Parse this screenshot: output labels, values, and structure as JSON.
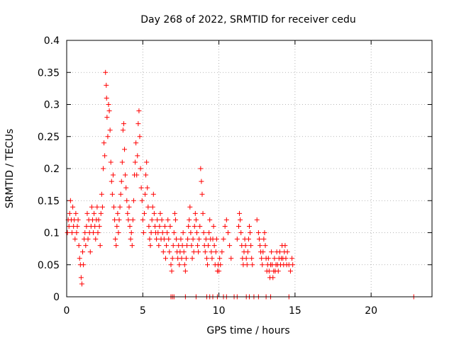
{
  "chart_data": {
    "type": "scatter",
    "title": "Day 268 of 2022, SRMTID for receiver cedu",
    "xlabel": "GPS time / hours",
    "ylabel": "SRMTID / TECUs",
    "xlim": [
      0,
      24
    ],
    "ylim": [
      0,
      0.4
    ],
    "xticks": [
      0,
      5,
      10,
      15,
      20
    ],
    "yticks": [
      0,
      0.05,
      0.1,
      0.15,
      0.2,
      0.25,
      0.3,
      0.35,
      0.4
    ],
    "ytick_labels": [
      "0",
      "0.05",
      "0.1",
      "0.15",
      "0.2",
      "0.25",
      "0.3",
      "0.35",
      "0.4"
    ],
    "grid": true,
    "marker": "+",
    "series": [
      {
        "name": "SRMTID",
        "color": "#ff0000",
        "points": [
          [
            0.05,
            0.1
          ],
          [
            0.1,
            0.12
          ],
          [
            0.15,
            0.11
          ],
          [
            0.2,
            0.13
          ],
          [
            0.25,
            0.15
          ],
          [
            0.3,
            0.12
          ],
          [
            0.35,
            0.1
          ],
          [
            0.4,
            0.14
          ],
          [
            0.45,
            0.11
          ],
          [
            0.5,
            0.12
          ],
          [
            0.55,
            0.09
          ],
          [
            0.6,
            0.13
          ],
          [
            0.65,
            0.1
          ],
          [
            0.7,
            0.11
          ],
          [
            0.75,
            0.12
          ],
          [
            0.8,
            0.08
          ],
          [
            0.85,
            0.06
          ],
          [
            0.9,
            0.05
          ],
          [
            0.95,
            0.03
          ],
          [
            1.0,
            0.02
          ],
          [
            1.05,
            0.07
          ],
          [
            1.1,
            0.05
          ],
          [
            1.15,
            0.09
          ],
          [
            1.2,
            0.1
          ],
          [
            1.25,
            0.08
          ],
          [
            1.3,
            0.11
          ],
          [
            1.35,
            0.13
          ],
          [
            1.4,
            0.09
          ],
          [
            1.45,
            0.12
          ],
          [
            1.5,
            0.1
          ],
          [
            1.55,
            0.07
          ],
          [
            1.6,
            0.11
          ],
          [
            1.65,
            0.14
          ],
          [
            1.7,
            0.12
          ],
          [
            1.75,
            0.1
          ],
          [
            1.8,
            0.13
          ],
          [
            1.85,
            0.11
          ],
          [
            1.9,
            0.09
          ],
          [
            1.95,
            0.12
          ],
          [
            2.0,
            0.14
          ],
          [
            2.05,
            0.1
          ],
          [
            2.1,
            0.12
          ],
          [
            2.15,
            0.11
          ],
          [
            2.2,
            0.08
          ],
          [
            2.25,
            0.13
          ],
          [
            2.3,
            0.16
          ],
          [
            2.35,
            0.14
          ],
          [
            2.4,
            0.2
          ],
          [
            2.45,
            0.24
          ],
          [
            2.5,
            0.22
          ],
          [
            2.55,
            0.35
          ],
          [
            2.6,
            0.33
          ],
          [
            2.62,
            0.31
          ],
          [
            2.65,
            0.28
          ],
          [
            2.7,
            0.25
          ],
          [
            2.75,
            0.3
          ],
          [
            2.8,
            0.29
          ],
          [
            2.85,
            0.26
          ],
          [
            2.9,
            0.21
          ],
          [
            2.95,
            0.18
          ],
          [
            3.0,
            0.16
          ],
          [
            3.05,
            0.19
          ],
          [
            3.1,
            0.14
          ],
          [
            3.15,
            0.12
          ],
          [
            3.2,
            0.09
          ],
          [
            3.25,
            0.08
          ],
          [
            3.3,
            0.11
          ],
          [
            3.35,
            0.13
          ],
          [
            3.4,
            0.1
          ],
          [
            3.45,
            0.12
          ],
          [
            3.5,
            0.14
          ],
          [
            3.55,
            0.16
          ],
          [
            3.6,
            0.18
          ],
          [
            3.65,
            0.21
          ],
          [
            3.7,
            0.26
          ],
          [
            3.75,
            0.27
          ],
          [
            3.8,
            0.23
          ],
          [
            3.85,
            0.19
          ],
          [
            3.9,
            0.17
          ],
          [
            3.95,
            0.15
          ],
          [
            4.0,
            0.13
          ],
          [
            4.05,
            0.12
          ],
          [
            4.1,
            0.14
          ],
          [
            4.15,
            0.11
          ],
          [
            4.2,
            0.09
          ],
          [
            4.25,
            0.1
          ],
          [
            4.3,
            0.08
          ],
          [
            4.35,
            0.12
          ],
          [
            4.4,
            0.15
          ],
          [
            4.45,
            0.19
          ],
          [
            4.5,
            0.21
          ],
          [
            4.55,
            0.24
          ],
          [
            4.6,
            0.19
          ],
          [
            4.65,
            0.22
          ],
          [
            4.7,
            0.27
          ],
          [
            4.75,
            0.29
          ],
          [
            4.8,
            0.25
          ],
          [
            4.85,
            0.2
          ],
          [
            4.9,
            0.17
          ],
          [
            4.95,
            0.15
          ],
          [
            5.0,
            0.12
          ],
          [
            5.05,
            0.1
          ],
          [
            5.1,
            0.13
          ],
          [
            5.15,
            0.16
          ],
          [
            5.2,
            0.19
          ],
          [
            5.25,
            0.21
          ],
          [
            5.3,
            0.17
          ],
          [
            5.35,
            0.14
          ],
          [
            5.4,
            0.11
          ],
          [
            5.45,
            0.09
          ],
          [
            5.5,
            0.08
          ],
          [
            5.55,
            0.1
          ],
          [
            5.6,
            0.12
          ],
          [
            5.65,
            0.14
          ],
          [
            5.7,
            0.16
          ],
          [
            5.75,
            0.13
          ],
          [
            5.8,
            0.11
          ],
          [
            5.85,
            0.1
          ],
          [
            5.9,
            0.09
          ],
          [
            5.95,
            0.12
          ],
          [
            6.0,
            0.1
          ],
          [
            6.05,
            0.08
          ],
          [
            6.1,
            0.11
          ],
          [
            6.15,
            0.13
          ],
          [
            6.2,
            0.09
          ],
          [
            6.25,
            0.12
          ],
          [
            6.3,
            0.1
          ],
          [
            6.35,
            0.07
          ],
          [
            6.4,
            0.09
          ],
          [
            6.45,
            0.11
          ],
          [
            6.5,
            0.06
          ],
          [
            6.55,
            0.08
          ],
          [
            6.6,
            0.1
          ],
          [
            6.65,
            0.12
          ],
          [
            6.7,
            0.09
          ],
          [
            6.75,
            0.07
          ],
          [
            6.8,
            0.11
          ],
          [
            6.85,
            0.05
          ],
          [
            6.9,
            0.04
          ],
          [
            6.95,
            0.06
          ],
          [
            7.0,
            0.08
          ],
          [
            7.05,
            0.1
          ],
          [
            7.1,
            0.13
          ],
          [
            7.15,
            0.12
          ],
          [
            7.2,
            0.09
          ],
          [
            7.25,
            0.07
          ],
          [
            7.3,
            0.06
          ],
          [
            7.35,
            0.08
          ],
          [
            7.4,
            0.05
          ],
          [
            7.45,
            0.07
          ],
          [
            7.5,
            0.09
          ],
          [
            7.55,
            0.06
          ],
          [
            7.6,
            0.08
          ],
          [
            7.65,
            0.1
          ],
          [
            7.7,
            0.07
          ],
          [
            7.75,
            0.05
          ],
          [
            7.8,
            0.04
          ],
          [
            7.85,
            0.06
          ],
          [
            7.9,
            0.08
          ],
          [
            7.95,
            0.09
          ],
          [
            8.0,
            0.11
          ],
          [
            8.05,
            0.12
          ],
          [
            8.1,
            0.14
          ],
          [
            8.15,
            0.1
          ],
          [
            8.2,
            0.08
          ],
          [
            8.25,
            0.06
          ],
          [
            8.3,
            0.09
          ],
          [
            8.35,
            0.07
          ],
          [
            8.4,
            0.11
          ],
          [
            8.45,
            0.13
          ],
          [
            8.5,
            0.12
          ],
          [
            8.55,
            0.1
          ],
          [
            8.6,
            0.08
          ],
          [
            8.65,
            0.07
          ],
          [
            8.7,
            0.09
          ],
          [
            8.75,
            0.11
          ],
          [
            8.8,
            0.2
          ],
          [
            8.85,
            0.18
          ],
          [
            8.9,
            0.16
          ],
          [
            8.95,
            0.13
          ],
          [
            9.0,
            0.1
          ],
          [
            9.05,
            0.08
          ],
          [
            9.1,
            0.07
          ],
          [
            9.15,
            0.09
          ],
          [
            9.2,
            0.06
          ],
          [
            9.25,
            0.05
          ],
          [
            9.3,
            0.08
          ],
          [
            9.35,
            0.1
          ],
          [
            9.4,
            0.12
          ],
          [
            9.45,
            0.09
          ],
          [
            9.5,
            0.07
          ],
          [
            9.55,
            0.06
          ],
          [
            9.6,
            0.09
          ],
          [
            9.65,
            0.11
          ],
          [
            9.7,
            0.08
          ],
          [
            9.75,
            0.05
          ],
          [
            9.8,
            0.07
          ],
          [
            9.85,
            0.09
          ],
          [
            9.9,
            0.04
          ],
          [
            9.95,
            0.05
          ],
          [
            10.0,
            0.04
          ],
          [
            10.05,
            0.06
          ],
          [
            10.1,
            0.05
          ],
          [
            10.2,
            0.07
          ],
          [
            10.3,
            0.09
          ],
          [
            10.4,
            0.11
          ],
          [
            10.5,
            0.12
          ],
          [
            10.6,
            0.1
          ],
          [
            10.7,
            0.08
          ],
          [
            10.8,
            0.06
          ],
          [
            11.2,
            0.09
          ],
          [
            11.3,
            0.11
          ],
          [
            11.35,
            0.13
          ],
          [
            11.4,
            0.12
          ],
          [
            11.45,
            0.1
          ],
          [
            11.5,
            0.08
          ],
          [
            11.55,
            0.06
          ],
          [
            11.6,
            0.05
          ],
          [
            11.65,
            0.07
          ],
          [
            11.7,
            0.09
          ],
          [
            11.75,
            0.08
          ],
          [
            11.8,
            0.06
          ],
          [
            11.85,
            0.05
          ],
          [
            11.9,
            0.07
          ],
          [
            11.95,
            0.09
          ],
          [
            12.0,
            0.11
          ],
          [
            12.05,
            0.1
          ],
          [
            12.1,
            0.08
          ],
          [
            12.15,
            0.06
          ],
          [
            12.2,
            0.05
          ],
          [
            12.5,
            0.12
          ],
          [
            12.6,
            0.1
          ],
          [
            12.65,
            0.09
          ],
          [
            12.7,
            0.08
          ],
          [
            12.75,
            0.07
          ],
          [
            12.8,
            0.06
          ],
          [
            12.85,
            0.05
          ],
          [
            12.9,
            0.07
          ],
          [
            12.95,
            0.09
          ],
          [
            13.0,
            0.1
          ],
          [
            13.05,
            0.08
          ],
          [
            13.1,
            0.06
          ],
          [
            13.15,
            0.04
          ],
          [
            13.2,
            0.05
          ],
          [
            13.25,
            0.06
          ],
          [
            13.3,
            0.04
          ],
          [
            13.35,
            0.03
          ],
          [
            13.4,
            0.05
          ],
          [
            13.45,
            0.07
          ],
          [
            13.5,
            0.05
          ],
          [
            13.55,
            0.03
          ],
          [
            13.6,
            0.04
          ],
          [
            13.65,
            0.06
          ],
          [
            13.7,
            0.04
          ],
          [
            13.75,
            0.05
          ],
          [
            13.8,
            0.07
          ],
          [
            13.85,
            0.05
          ],
          [
            13.9,
            0.04
          ],
          [
            13.95,
            0.06
          ],
          [
            14.0,
            0.07
          ],
          [
            14.05,
            0.05
          ],
          [
            14.1,
            0.06
          ],
          [
            14.15,
            0.08
          ],
          [
            14.2,
            0.06
          ],
          [
            14.25,
            0.05
          ],
          [
            14.3,
            0.07
          ],
          [
            14.35,
            0.08
          ],
          [
            14.4,
            0.06
          ],
          [
            14.45,
            0.05
          ],
          [
            14.5,
            0.07
          ],
          [
            14.6,
            0.05
          ],
          [
            14.7,
            0.04
          ],
          [
            14.8,
            0.06
          ],
          [
            14.85,
            0.05
          ],
          [
            6.85,
            0.0
          ],
          [
            6.95,
            0.0
          ],
          [
            7.05,
            0.0
          ],
          [
            7.8,
            0.0
          ],
          [
            8.5,
            0.0
          ],
          [
            9.2,
            0.0
          ],
          [
            9.4,
            0.0
          ],
          [
            9.6,
            0.0
          ],
          [
            9.9,
            0.0
          ],
          [
            10.3,
            0.0
          ],
          [
            10.5,
            0.0
          ],
          [
            11.0,
            0.0
          ],
          [
            11.2,
            0.0
          ],
          [
            11.8,
            0.0
          ],
          [
            12.0,
            0.0
          ],
          [
            12.3,
            0.0
          ],
          [
            12.6,
            0.0
          ],
          [
            13.1,
            0.0
          ],
          [
            13.4,
            0.0
          ],
          [
            14.6,
            0.0
          ],
          [
            22.8,
            0.0
          ]
        ]
      }
    ]
  }
}
